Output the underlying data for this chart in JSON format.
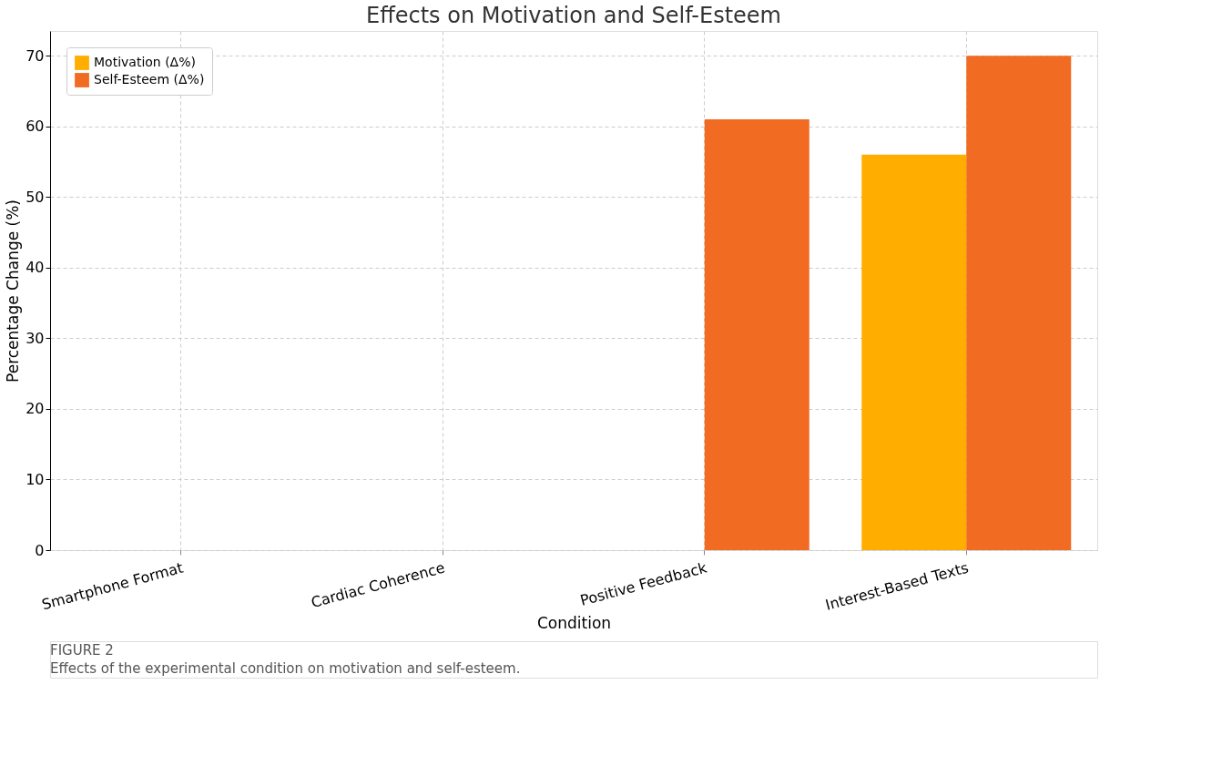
{
  "chart_data": {
    "type": "bar",
    "title": "Effects on Motivation and Self-Esteem",
    "xlabel": "Condition",
    "ylabel": "Percentage Change (%)",
    "categories": [
      "Smartphone Format",
      "Cardiac Coherence",
      "Positive Feedback",
      "Interest-Based Texts"
    ],
    "series": [
      {
        "name": "Motivation (Δ%)",
        "color": "#ffae00",
        "values": [
          0,
          0,
          0,
          56
        ]
      },
      {
        "name": "Self-Esteem (Δ%)",
        "color": "#f26b22",
        "values": [
          0,
          0,
          61,
          70
        ]
      }
    ],
    "ylim": [
      0,
      73.5
    ],
    "yticks": [
      0,
      10,
      20,
      30,
      40,
      50,
      60,
      70
    ],
    "grid": true,
    "legend": "top left",
    "annotations": [
      "FIGURE 2",
      "Effects of the experimental condition on motivation and self-esteem."
    ]
  }
}
